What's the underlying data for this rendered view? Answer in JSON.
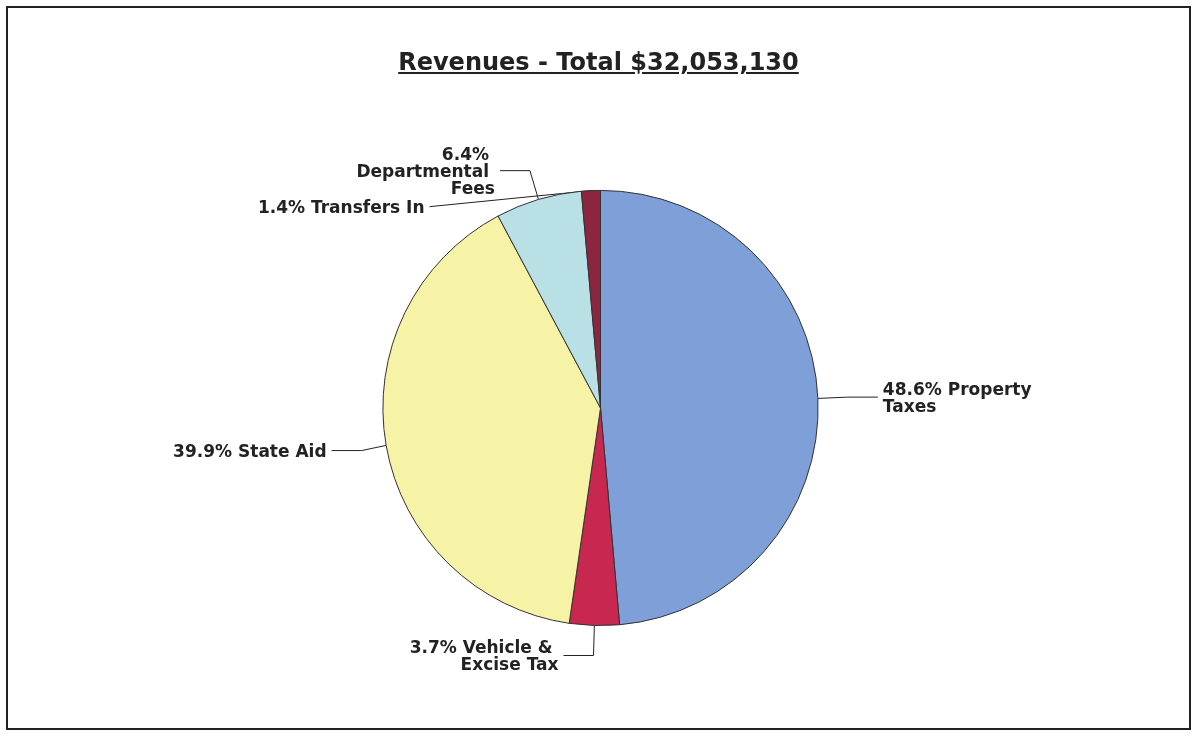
{
  "chart_data": {
    "type": "pie",
    "title": "Revenues - Total $32,053,130",
    "categories": [
      "Property Taxes",
      "Vehicle & Excise Tax",
      "State Aid",
      "Departmental Fees",
      "Transfers In"
    ],
    "values": [
      48.6,
      3.7,
      39.9,
      6.4,
      1.4
    ],
    "colors": [
      "#7f9fd9",
      "#c8284f",
      "#f7f3a6",
      "#b9e0e5",
      "#8b2540"
    ],
    "value_labels": [
      "48.6%",
      "3.7%",
      "39.9%",
      "6.4%",
      "1.4%"
    ],
    "legend": false
  }
}
